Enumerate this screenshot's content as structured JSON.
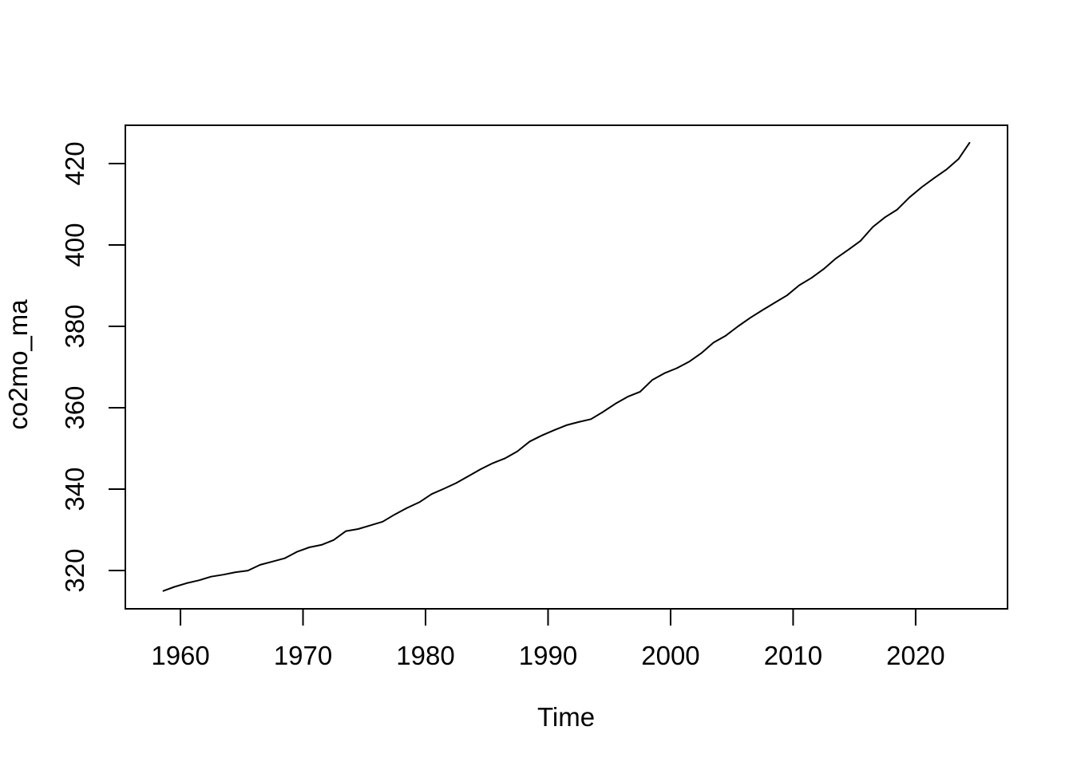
{
  "figure": {
    "background_color": "#FFFFFF",
    "line_color": "#000000",
    "text_color": "#000000"
  },
  "chart_data": {
    "type": "line",
    "title": "",
    "xlabel": "Time",
    "ylabel": "co2mo_ma",
    "xlim": [
      1955.5,
      2027.5
    ],
    "ylim": [
      310.6,
      429.4
    ],
    "xticks": [
      1960,
      1970,
      1980,
      1990,
      2000,
      2010,
      2020
    ],
    "yticks": [
      320,
      340,
      360,
      380,
      400,
      420
    ],
    "grid": false,
    "legend": "none",
    "series": [
      {
        "name": "co2mo_ma",
        "color": "#000000",
        "x": [
          1958.6,
          1959.5,
          1960.5,
          1961.5,
          1962.5,
          1963.5,
          1964.5,
          1965.5,
          1966.5,
          1967.5,
          1968.5,
          1969.5,
          1970.5,
          1971.5,
          1972.5,
          1973.5,
          1974.5,
          1975.5,
          1976.5,
          1977.5,
          1978.5,
          1979.5,
          1980.5,
          1981.5,
          1982.5,
          1983.5,
          1984.5,
          1985.5,
          1986.5,
          1987.5,
          1988.5,
          1989.5,
          1990.5,
          1991.5,
          1992.5,
          1993.5,
          1994.5,
          1995.5,
          1996.5,
          1997.5,
          1998.5,
          1999.5,
          2000.5,
          2001.5,
          2002.5,
          2003.5,
          2004.5,
          2005.5,
          2006.5,
          2007.5,
          2008.5,
          2009.5,
          2010.5,
          2011.5,
          2012.5,
          2013.5,
          2014.5,
          2015.5,
          2016.5,
          2017.5,
          2018.5,
          2019.5,
          2020.5,
          2021.5,
          2022.5,
          2023.5,
          2024.4
        ],
        "y": [
          315.0,
          316.0,
          316.9,
          317.6,
          318.5,
          319.0,
          319.6,
          320.0,
          321.4,
          322.2,
          323.0,
          324.6,
          325.7,
          326.3,
          327.5,
          329.7,
          330.2,
          331.1,
          332.0,
          333.8,
          335.4,
          336.8,
          338.8,
          340.1,
          341.5,
          343.2,
          344.9,
          346.4,
          347.6,
          349.3,
          351.7,
          353.2,
          354.5,
          355.7,
          356.5,
          357.2,
          359.0,
          361.0,
          362.7,
          363.9,
          366.8,
          368.5,
          369.7,
          371.3,
          373.4,
          376.0,
          377.7,
          380.0,
          382.1,
          384.0,
          385.8,
          387.6,
          390.1,
          391.9,
          394.1,
          396.7,
          398.8,
          401.0,
          404.4,
          406.8,
          408.7,
          411.7,
          414.2,
          416.4,
          418.5,
          421.1,
          425.1
        ]
      }
    ]
  }
}
